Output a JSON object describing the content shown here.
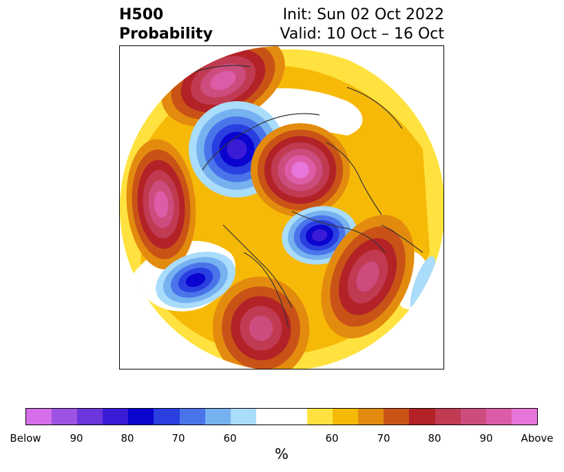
{
  "title": {
    "left_line1": "H500",
    "left_line2": "Probability",
    "right_line1": "Init: Sun 02 Oct 2022",
    "right_line2": "Valid: 10 Oct – 16 Oct"
  },
  "colorbar": {
    "unit": "%",
    "colors": [
      "#d56ee8",
      "#9c53e3",
      "#6b36dc",
      "#3a1cd7",
      "#0b04cf",
      "#2a3fe0",
      "#4a74ea",
      "#76b1f0",
      "#aadcfb",
      "#ffffff",
      "#ffe23f",
      "#f6b908",
      "#e38b0e",
      "#c95317",
      "#b32227",
      "#c03a52",
      "#cc4c7d",
      "#dc5ca7",
      "#e676da"
    ],
    "ticks": [
      "Below",
      "90",
      "80",
      "70",
      "60",
      "60",
      "70",
      "80",
      "90",
      "Above"
    ]
  },
  "map": {
    "projection": "north-polar-stereographic",
    "anomaly_regions": [
      {
        "name": "alaska-low-prob",
        "category": "below",
        "peak": "90"
      },
      {
        "name": "pole-high-prob",
        "category": "above",
        "peak": "Above"
      },
      {
        "name": "greenland-low-prob",
        "category": "below",
        "peak": "80"
      },
      {
        "name": "pacific-high-prob",
        "category": "above",
        "peak": "Above"
      },
      {
        "name": "north-atlantic-high-prob",
        "category": "above",
        "peak": "90"
      },
      {
        "name": "east-pacific-low-prob",
        "category": "below",
        "peak": "80"
      },
      {
        "name": "us-high-prob",
        "category": "above",
        "peak": "90"
      },
      {
        "name": "east-siberia-high-prob",
        "category": "above",
        "peak": "90"
      }
    ]
  }
}
